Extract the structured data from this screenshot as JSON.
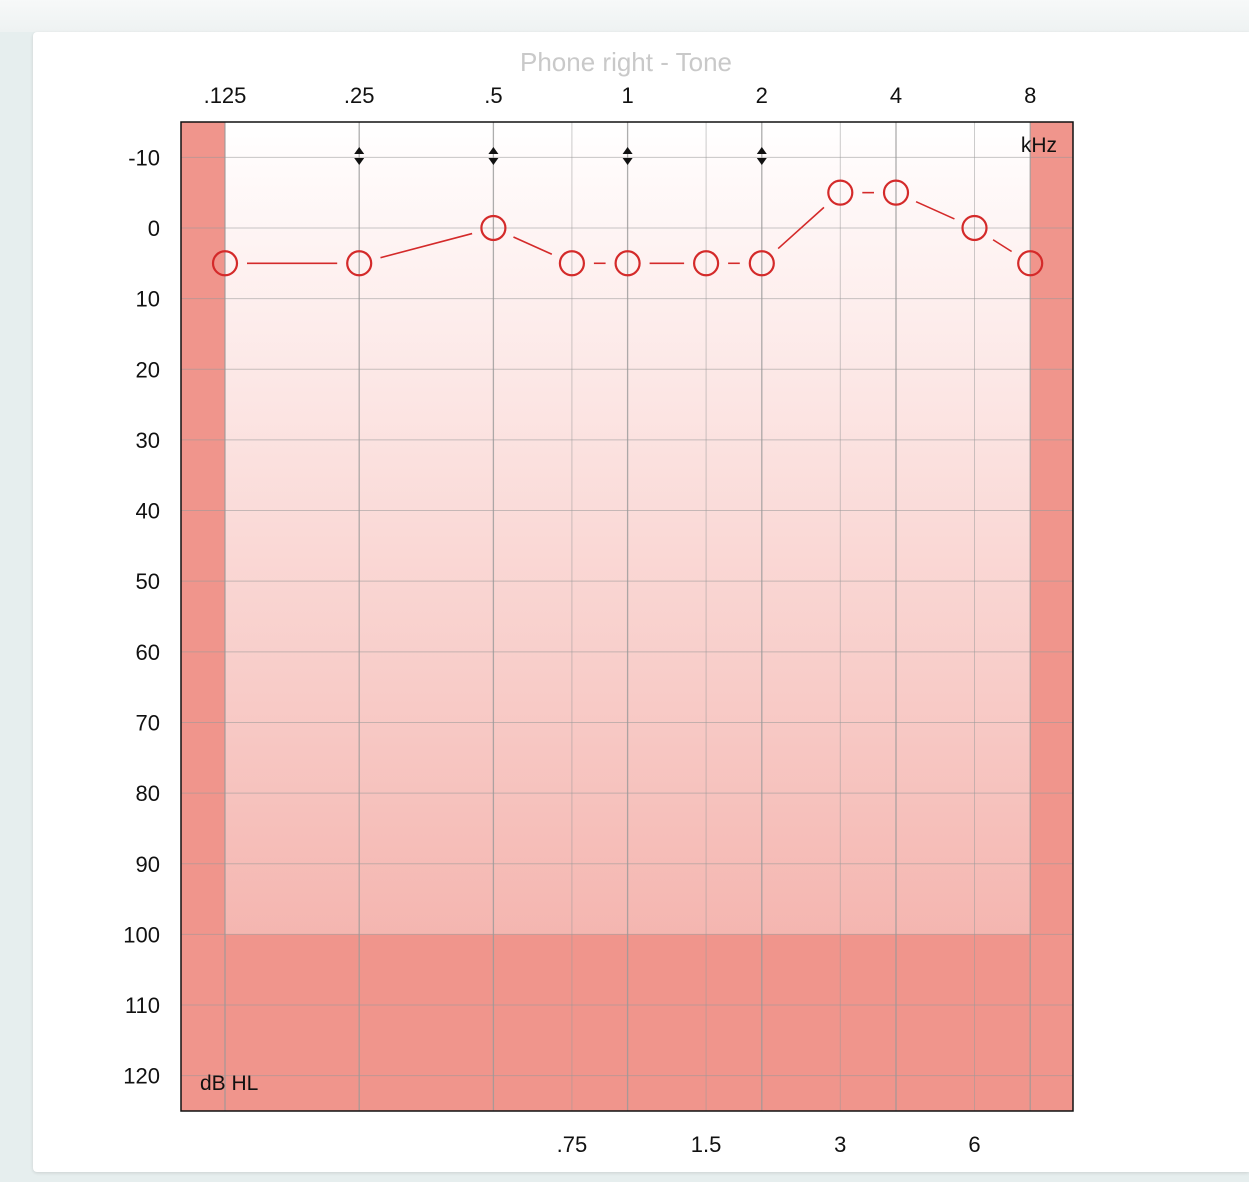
{
  "chart_data": {
    "type": "line",
    "title": "Phone right - Tone",
    "xlabel": "kHz",
    "ylabel": "dB HL",
    "x_scale": "log2",
    "x_major_ticks": [
      {
        "value": 0.125,
        "label": ".125"
      },
      {
        "value": 0.25,
        "label": ".25"
      },
      {
        "value": 0.5,
        "label": ".5"
      },
      {
        "value": 1,
        "label": "1"
      },
      {
        "value": 2,
        "label": "2"
      },
      {
        "value": 4,
        "label": "4"
      },
      {
        "value": 8,
        "label": "8"
      }
    ],
    "x_minor_ticks": [
      {
        "value": 0.75,
        "label": ".75"
      },
      {
        "value": 1.5,
        "label": "1.5"
      },
      {
        "value": 3,
        "label": "3"
      },
      {
        "value": 6,
        "label": "6"
      }
    ],
    "y_ticks": [
      -10,
      0,
      10,
      20,
      30,
      40,
      50,
      60,
      70,
      80,
      90,
      100,
      110,
      120
    ],
    "ylim": [
      -15,
      125
    ],
    "y_inverted": true,
    "grid": true,
    "series": [
      {
        "marker": "circle",
        "color": "#d42a2a",
        "points": [
          {
            "x": 0.125,
            "y": 5
          },
          {
            "x": 0.25,
            "y": 5
          },
          {
            "x": 0.5,
            "y": 0
          },
          {
            "x": 0.75,
            "y": 5
          },
          {
            "x": 1,
            "y": 5
          },
          {
            "x": 1.5,
            "y": 5
          },
          {
            "x": 2,
            "y": 5
          },
          {
            "x": 3,
            "y": -5
          },
          {
            "x": 4,
            "y": -5
          },
          {
            "x": 6,
            "y": 0
          },
          {
            "x": 8,
            "y": 5
          }
        ]
      }
    ],
    "masking_markers_at": [
      0.25,
      0.5,
      1,
      2
    ],
    "colors": {
      "grid": "#999999",
      "series": "#d42a2a",
      "band_dark": "#f0958c",
      "band_light": "#ffffff"
    }
  }
}
